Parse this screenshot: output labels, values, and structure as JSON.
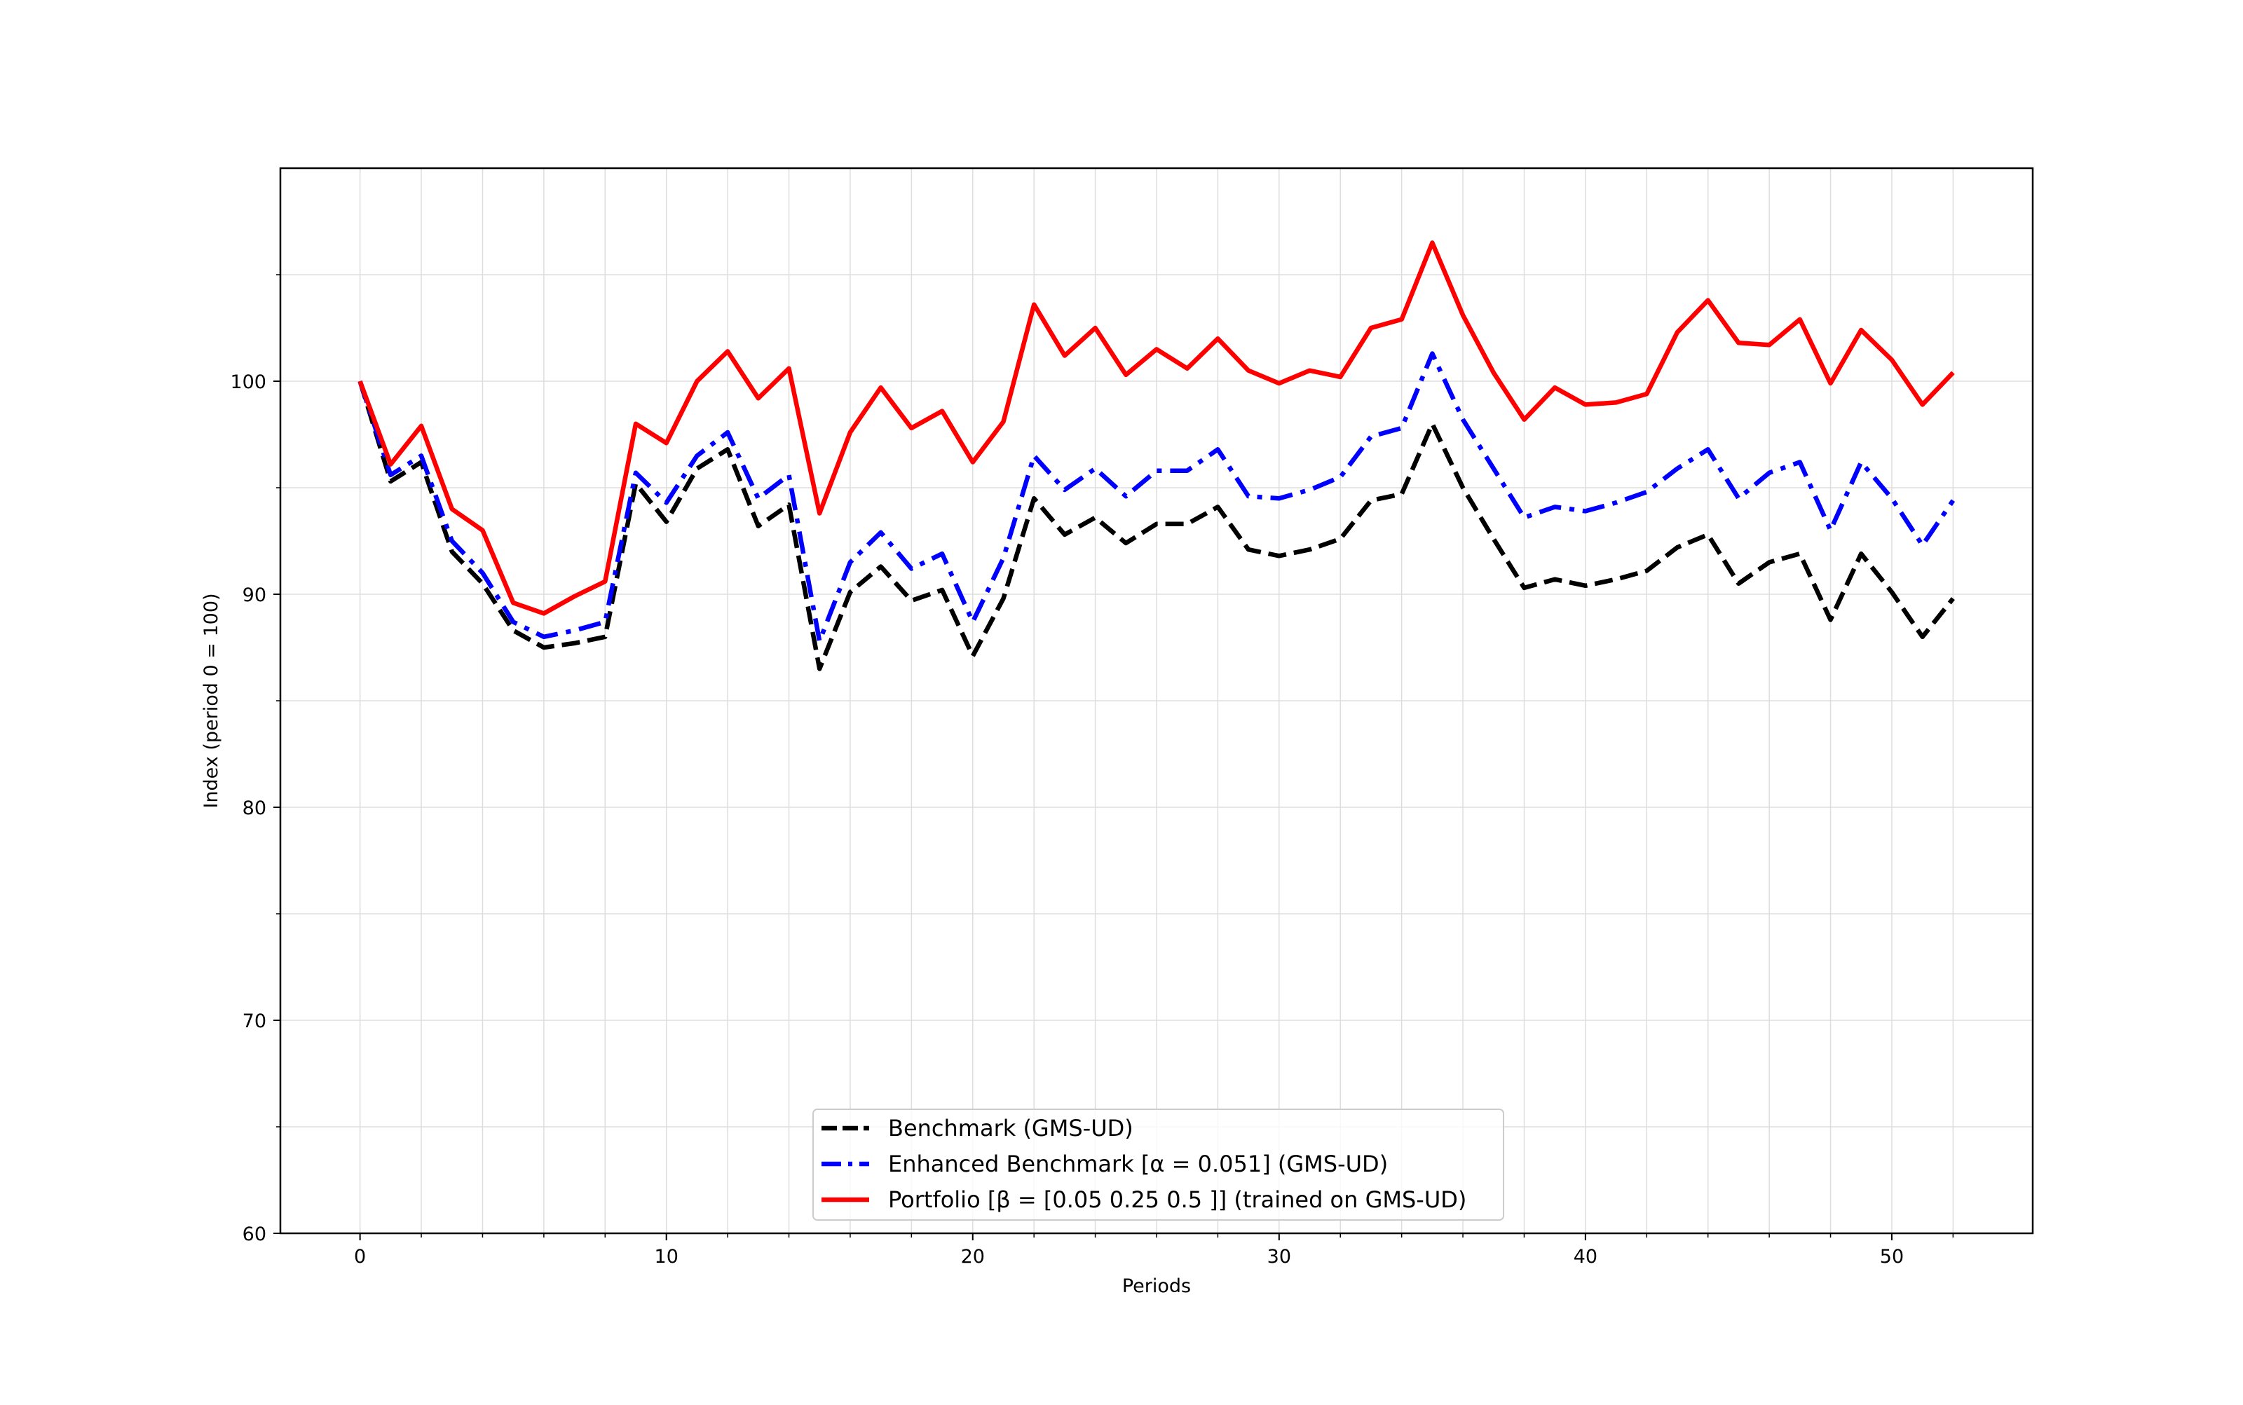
{
  "chart_data": {
    "type": "line",
    "title": "",
    "xlabel": "Periods",
    "ylabel": "Index (period 0 = 100)",
    "xlim": [
      -2.6,
      54.6
    ],
    "ylim": [
      60,
      110
    ],
    "x_major_ticks": [
      0,
      10,
      20,
      30,
      40,
      50
    ],
    "x_minor_ticks": [
      2,
      4,
      6,
      8,
      12,
      14,
      16,
      18,
      22,
      24,
      26,
      28,
      32,
      34,
      36,
      38,
      42,
      44,
      46,
      48,
      52
    ],
    "y_major_ticks": [
      60,
      70,
      80,
      90,
      100
    ],
    "y_minor_ticks": [
      65,
      75,
      85,
      95,
      105
    ],
    "grid": true,
    "legend_position": "lower-center",
    "x": [
      0,
      1,
      2,
      3,
      4,
      5,
      6,
      7,
      8,
      9,
      10,
      11,
      12,
      13,
      14,
      15,
      16,
      17,
      18,
      19,
      20,
      21,
      22,
      23,
      24,
      25,
      26,
      27,
      28,
      29,
      30,
      31,
      32,
      33,
      34,
      35,
      36,
      37,
      38,
      39,
      40,
      41,
      42,
      43,
      44,
      45,
      46,
      47,
      48,
      49,
      50,
      51,
      52
    ],
    "series": [
      {
        "name": "Benchmark (GMS-UD)",
        "color": "#000000",
        "style": "dashed",
        "values": [
          100.0,
          95.3,
          96.2,
          92.0,
          90.5,
          88.3,
          87.5,
          87.7,
          88.0,
          95.2,
          93.4,
          95.9,
          96.8,
          93.2,
          94.2,
          86.5,
          90.1,
          91.3,
          89.7,
          90.2,
          87.1,
          89.8,
          94.5,
          92.8,
          93.6,
          92.4,
          93.3,
          93.3,
          94.1,
          92.1,
          91.8,
          92.1,
          92.6,
          94.4,
          94.7,
          98.0,
          95.0,
          92.6,
          90.3,
          90.7,
          90.4,
          90.7,
          91.1,
          92.2,
          92.8,
          90.5,
          91.5,
          91.9,
          88.8,
          91.9,
          90.1,
          88.0,
          89.8
        ]
      },
      {
        "name": "Enhanced Benchmark [α = 0.051] (GMS-UD)",
        "color": "#0000ff",
        "style": "dashdot",
        "values": [
          100.0,
          95.6,
          96.5,
          92.5,
          91.0,
          88.7,
          88.0,
          88.3,
          88.7,
          95.7,
          94.3,
          96.5,
          97.6,
          94.5,
          95.6,
          87.8,
          91.5,
          92.9,
          91.2,
          91.9,
          88.7,
          91.7,
          96.5,
          94.9,
          95.9,
          94.6,
          95.8,
          95.8,
          96.8,
          94.6,
          94.5,
          94.9,
          95.5,
          97.4,
          97.8,
          101.3,
          98.2,
          95.9,
          93.6,
          94.1,
          93.9,
          94.3,
          94.8,
          95.9,
          96.8,
          94.5,
          95.7,
          96.2,
          93.0,
          96.2,
          94.5,
          92.3,
          94.4
        ]
      },
      {
        "name": "Portfolio [β = [0.05 0.25 0.5 ]] (trained on GMS-UD)",
        "color": "#ff0000",
        "style": "solid",
        "values": [
          100.0,
          96.1,
          97.9,
          94.0,
          93.0,
          89.6,
          89.1,
          89.9,
          90.6,
          98.0,
          97.1,
          100.0,
          101.4,
          99.2,
          100.6,
          93.8,
          97.6,
          99.7,
          97.8,
          98.6,
          96.2,
          98.1,
          103.6,
          101.2,
          102.5,
          100.3,
          101.5,
          100.6,
          102.0,
          100.5,
          99.9,
          100.5,
          100.2,
          102.5,
          102.9,
          106.5,
          103.1,
          100.4,
          98.2,
          99.7,
          98.9,
          99.0,
          99.4,
          102.3,
          103.8,
          101.8,
          101.7,
          102.9,
          99.9,
          102.4,
          101.0,
          98.9,
          100.4
        ]
      }
    ]
  }
}
